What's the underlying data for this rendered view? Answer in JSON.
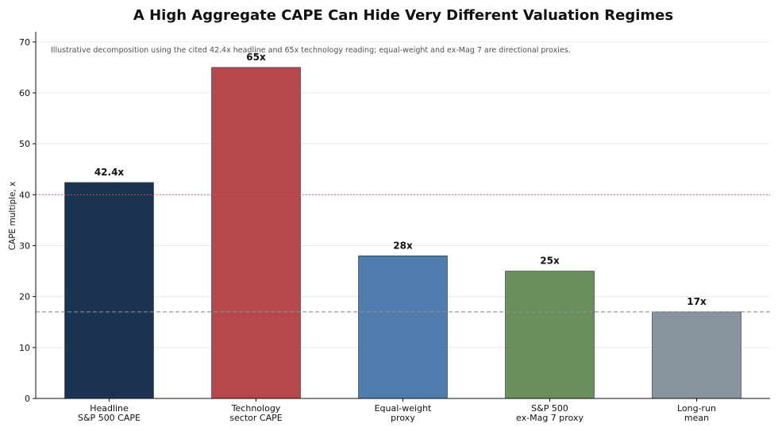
{
  "chart_data": {
    "type": "bar",
    "title": "A High Aggregate CAPE Can Hide Very Different Valuation Regimes",
    "subtitle": "Illustrative decomposition using the cited 42.4x headline and 65x technology reading; equal-weight and ex-Mag 7 are directional proxies.",
    "xlabel": "",
    "ylabel": "CAPE multiple, x",
    "ylim": [
      0,
      72
    ],
    "yticks": [
      0,
      10,
      20,
      30,
      40,
      50,
      60,
      70
    ],
    "grid": true,
    "categories": [
      [
        "Headline",
        "S&P 500 CAPE"
      ],
      [
        "Technology",
        "sector CAPE"
      ],
      [
        "Equal-weight",
        "proxy"
      ],
      [
        "S&P 500",
        "ex-Mag 7 proxy"
      ],
      [
        "Long-run",
        "mean"
      ]
    ],
    "values": [
      42.4,
      65,
      28,
      25,
      17
    ],
    "data_labels": [
      "42.4x",
      "65x",
      "28x",
      "25x",
      "17x"
    ],
    "colors": [
      "#1b3451",
      "#b5484d",
      "#4f7cad",
      "#6b8f5c",
      "#8a949f"
    ],
    "reference_lines": [
      {
        "value": 40,
        "color": "#cc5a5f",
        "style": "dotted"
      },
      {
        "value": 17,
        "color": "#8a8f96",
        "style": "dashed"
      }
    ]
  }
}
